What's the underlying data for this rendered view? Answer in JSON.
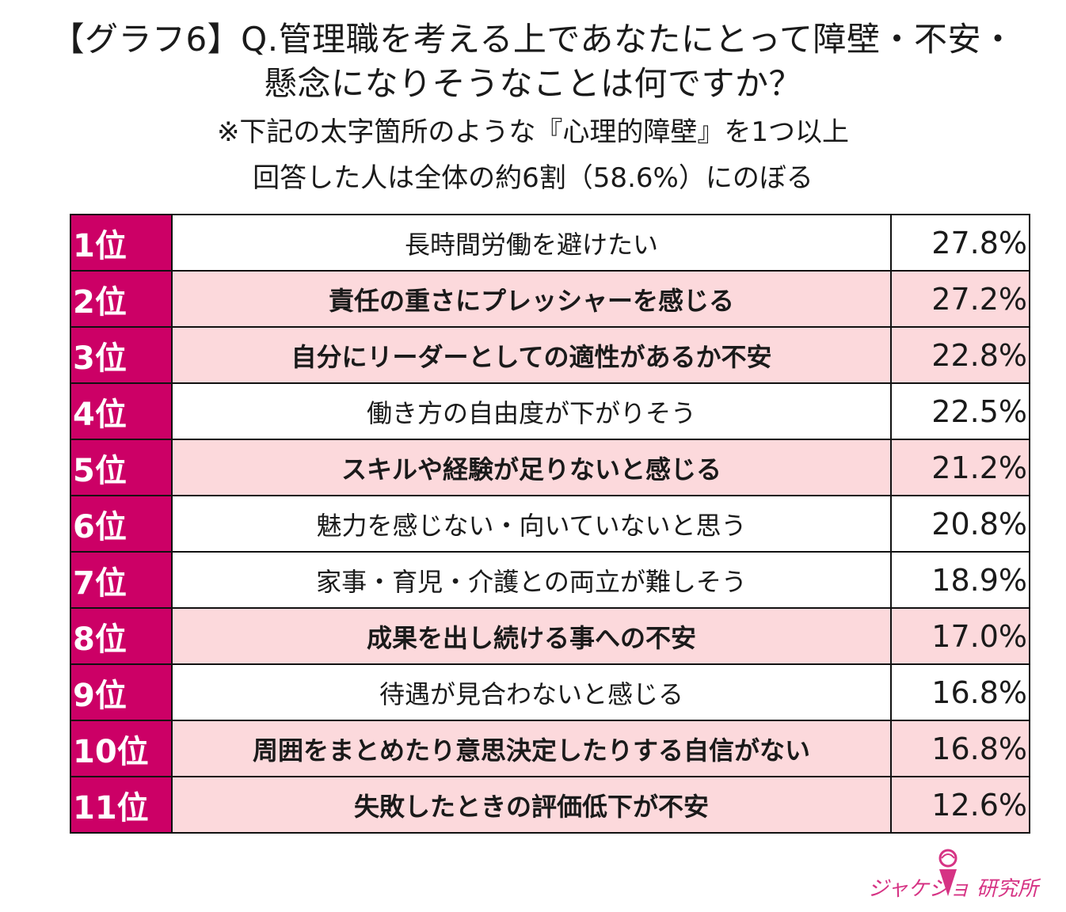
{
  "header": {
    "title_line1": "【グラフ6】Q.管理職を考える上であなたにとって障壁・不安・",
    "title_line2": "懸念になりそうなことは何ですか？",
    "subtitle_line1": "※下記の太字箇所のような『心理的障壁』を1つ以上",
    "subtitle_line2": "回答した人は全体の約6割（58.6%）にのぼる"
  },
  "table": {
    "rows": [
      {
        "rank": "1位",
        "label": "長時間労働を避けたい",
        "percent": "27.8%",
        "highlight": false
      },
      {
        "rank": "2位",
        "label": "責任の重さにプレッシャーを感じる",
        "percent": "27.2%",
        "highlight": true
      },
      {
        "rank": "3位",
        "label": "自分にリーダーとしての適性があるか不安",
        "percent": "22.8%",
        "highlight": true
      },
      {
        "rank": "4位",
        "label": "働き方の自由度が下がりそう",
        "percent": "22.5%",
        "highlight": false
      },
      {
        "rank": "5位",
        "label": "スキルや経験が足りないと感じる",
        "percent": "21.2%",
        "highlight": true
      },
      {
        "rank": "6位",
        "label": "魅力を感じない・向いていないと思う",
        "percent": "20.8%",
        "highlight": false
      },
      {
        "rank": "7位",
        "label": "家事・育児・介護との両立が難しそう",
        "percent": "18.9%",
        "highlight": false
      },
      {
        "rank": "8位",
        "label": "成果を出し続ける事への不安",
        "percent": "17.0%",
        "highlight": true
      },
      {
        "rank": "9位",
        "label": "待遇が見合わないと感じる",
        "percent": "16.8%",
        "highlight": false
      },
      {
        "rank": "10位",
        "label": "周囲をまとめたり意思決定したりする自信がない",
        "percent": "16.8%",
        "highlight": true
      },
      {
        "rank": "11位",
        "label": "失敗したときの評価低下が不安",
        "percent": "12.6%",
        "highlight": true
      }
    ]
  },
  "logo": {
    "text": "ジャケジョ 研究所"
  },
  "colors": {
    "rank_bg": "#cc0066",
    "highlight_bg": "#fcd9dc",
    "logo": "#d63384"
  }
}
